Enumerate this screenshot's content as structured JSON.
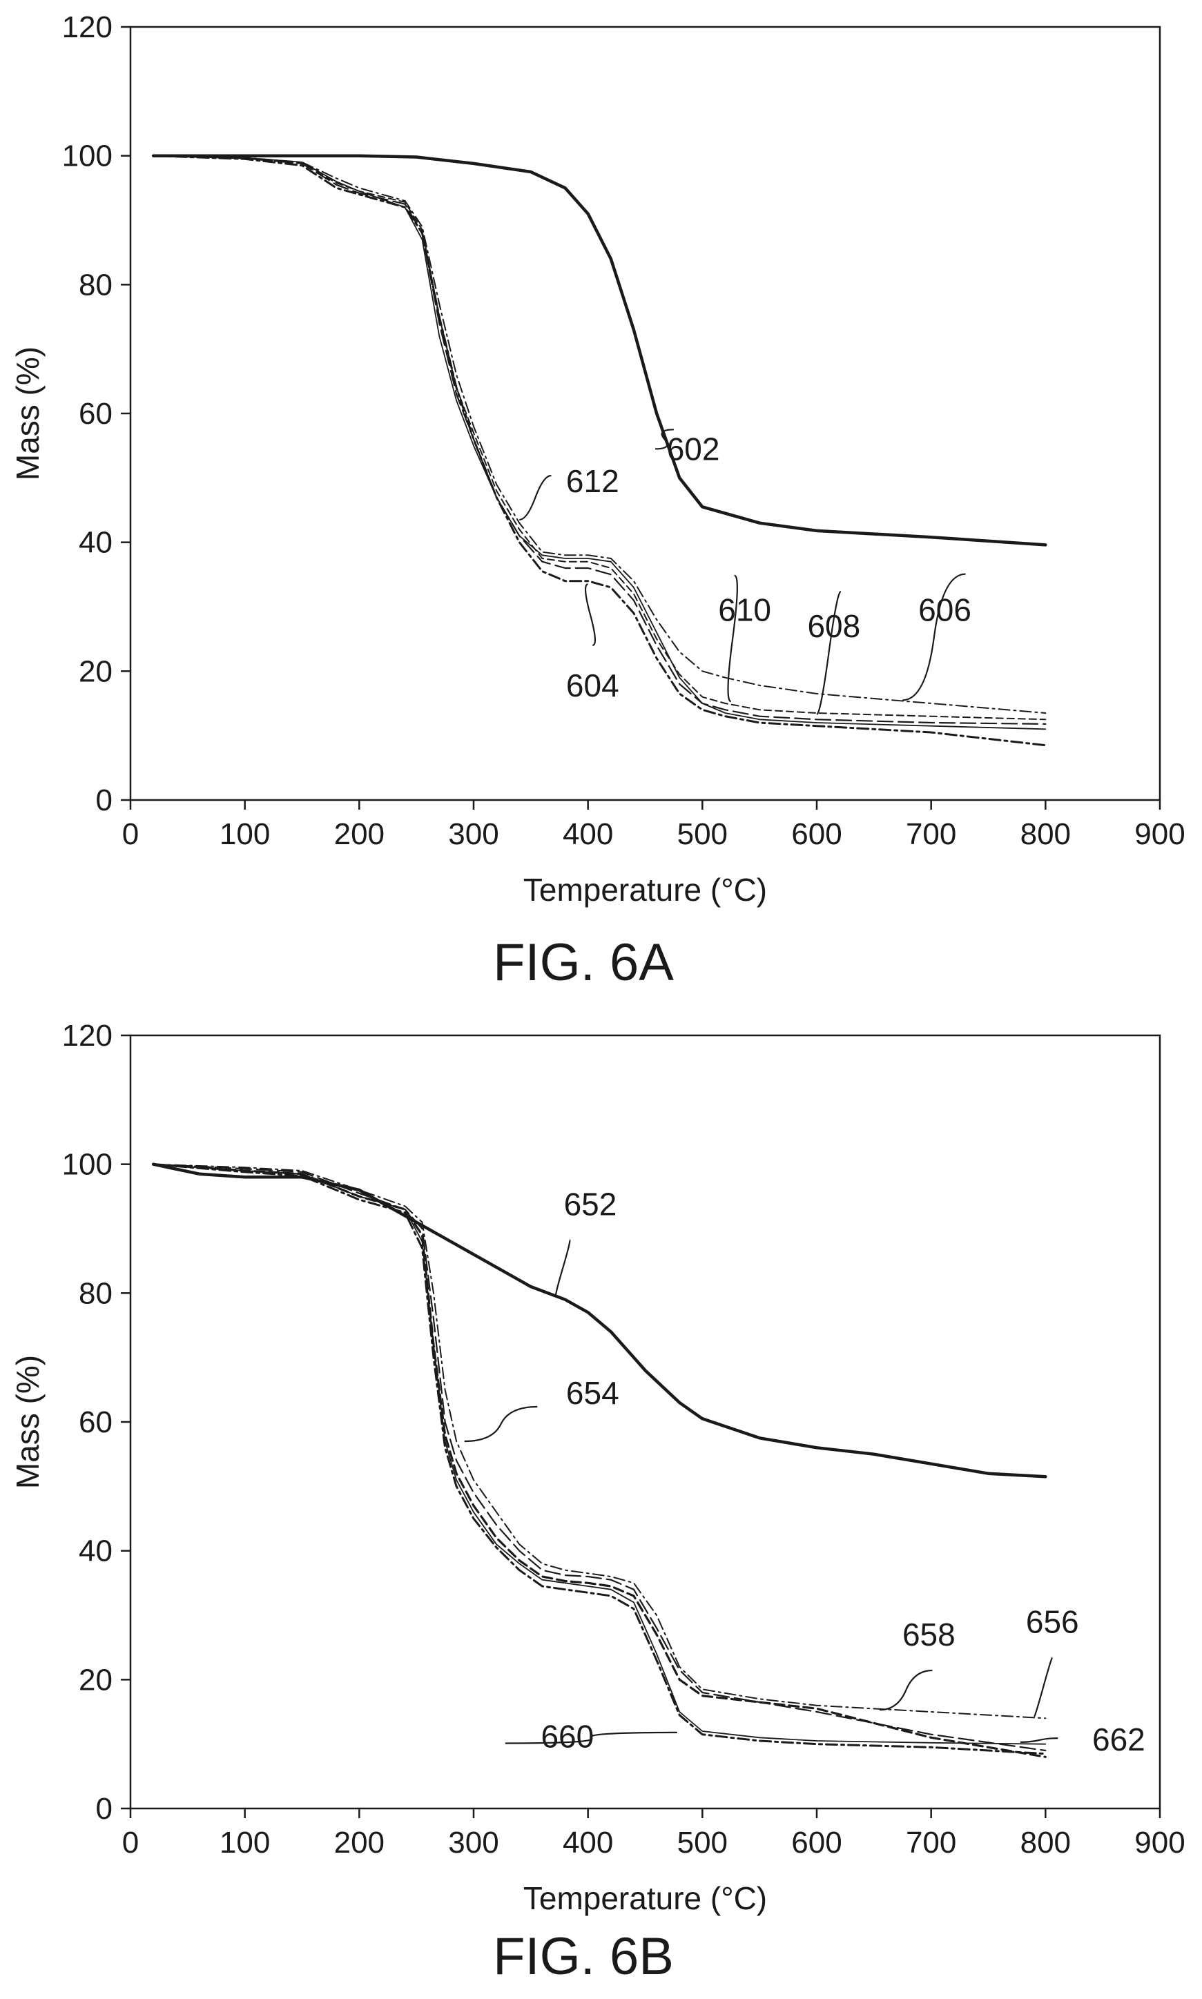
{
  "chart_data": [
    {
      "type": "line",
      "caption": "FIG. 6A",
      "xlabel": "Temperature (°C)",
      "ylabel": "Mass (%)",
      "xlim": [
        0,
        900
      ],
      "ylim": [
        0,
        120
      ],
      "xticks": [
        0,
        100,
        200,
        300,
        400,
        500,
        600,
        700,
        800,
        900
      ],
      "yticks": [
        0,
        20,
        40,
        60,
        80,
        100,
        120
      ],
      "grid": false,
      "series": [
        {
          "name": "602",
          "style": "thick-solid",
          "x": [
            20,
            100,
            200,
            250,
            300,
            350,
            380,
            400,
            420,
            440,
            460,
            480,
            500,
            550,
            600,
            700,
            800
          ],
          "y": [
            100,
            100,
            100,
            99.8,
            98.8,
            97.5,
            95,
            91,
            84,
            73,
            60,
            50,
            45.5,
            43,
            41.8,
            40.8,
            39.6
          ]
        },
        {
          "name": "612",
          "style": "thin-solid",
          "x": [
            20,
            100,
            150,
            180,
            200,
            240,
            255,
            270,
            285,
            300,
            320,
            340,
            360,
            380,
            400,
            420,
            440,
            460,
            480,
            500,
            520,
            550,
            600,
            700,
            800
          ],
          "y": [
            100,
            99.7,
            99,
            96,
            94.5,
            92,
            87,
            72,
            62,
            55,
            47,
            41,
            38,
            37.5,
            37.5,
            37,
            33,
            26,
            19,
            15,
            13.5,
            12.5,
            12,
            11.5,
            11
          ]
        },
        {
          "name": "604",
          "style": "dash-dot-bold",
          "x": [
            20,
            100,
            150,
            180,
            200,
            240,
            255,
            270,
            285,
            300,
            320,
            340,
            360,
            380,
            400,
            420,
            440,
            460,
            480,
            500,
            520,
            550,
            600,
            700,
            800
          ],
          "y": [
            100,
            99.5,
            98.5,
            95,
            94,
            92,
            88,
            75,
            64,
            56,
            47,
            40,
            35.5,
            34,
            34,
            33,
            29,
            22,
            16.5,
            14,
            13,
            12,
            11.5,
            10.5,
            8.5
          ]
        },
        {
          "name": "610",
          "style": "long-dash",
          "x": [
            20,
            100,
            150,
            180,
            200,
            240,
            255,
            270,
            285,
            300,
            320,
            340,
            360,
            380,
            400,
            420,
            440,
            460,
            480,
            500,
            520,
            550,
            600,
            700,
            800
          ],
          "y": [
            100,
            99.6,
            98.8,
            95.5,
            94.2,
            92.5,
            88,
            74,
            63,
            56,
            47,
            41,
            37,
            36,
            36,
            35,
            31,
            24,
            18,
            15,
            14,
            13,
            12.5,
            12,
            11.8
          ]
        },
        {
          "name": "608",
          "style": "dashed",
          "x": [
            20,
            100,
            150,
            180,
            200,
            240,
            255,
            270,
            285,
            300,
            320,
            340,
            360,
            380,
            400,
            420,
            440,
            460,
            480,
            500,
            520,
            550,
            600,
            700,
            800
          ],
          "y": [
            100,
            99.6,
            98.8,
            95.8,
            94.5,
            92.8,
            88.5,
            75,
            64,
            57,
            48,
            42,
            37.5,
            37,
            37,
            36,
            32,
            25,
            19.5,
            16,
            15,
            14,
            13.5,
            13,
            12.5
          ]
        },
        {
          "name": "606",
          "style": "dash-dot",
          "x": [
            20,
            100,
            150,
            180,
            200,
            240,
            255,
            270,
            285,
            300,
            320,
            340,
            360,
            380,
            400,
            420,
            440,
            460,
            480,
            500,
            520,
            550,
            600,
            700,
            800
          ],
          "y": [
            100,
            99.7,
            99,
            96.5,
            95,
            93,
            89,
            77,
            66,
            58,
            49,
            43,
            38.5,
            38,
            38,
            37.5,
            34,
            28,
            23,
            20,
            19,
            17.8,
            16.5,
            15,
            13.5
          ]
        }
      ],
      "annotations": [
        {
          "text": "602",
          "x": 492,
          "y": 54.5
        },
        {
          "text": "612",
          "x": 404,
          "y": 49.5
        },
        {
          "text": "604",
          "x": 404,
          "y": 17.8
        },
        {
          "text": "610",
          "x": 537,
          "y": 29.5
        },
        {
          "text": "608",
          "x": 615,
          "y": 27
        },
        {
          "text": "606",
          "x": 712,
          "y": 29.5
        }
      ]
    },
    {
      "type": "line",
      "caption": "FIG. 6B",
      "xlabel": "Temperature (°C)",
      "ylabel": "Mass (%)",
      "xlim": [
        0,
        900
      ],
      "ylim": [
        0,
        120
      ],
      "xticks": [
        0,
        100,
        200,
        300,
        400,
        500,
        600,
        700,
        800,
        900
      ],
      "yticks": [
        0,
        20,
        40,
        60,
        80,
        100,
        120
      ],
      "grid": false,
      "series": [
        {
          "name": "652",
          "style": "thick-solid",
          "x": [
            20,
            60,
            100,
            150,
            200,
            250,
            300,
            350,
            380,
            400,
            420,
            450,
            480,
            500,
            550,
            600,
            650,
            700,
            750,
            800
          ],
          "y": [
            100,
            98.5,
            98,
            98,
            96,
            91,
            86,
            81,
            79,
            77,
            74,
            68,
            63,
            60.5,
            57.5,
            56,
            55,
            53.5,
            52,
            51.5
          ]
        },
        {
          "name": "654",
          "style": "dash-dot",
          "x": [
            20,
            100,
            150,
            200,
            240,
            255,
            265,
            275,
            285,
            300,
            320,
            340,
            360,
            380,
            400,
            420,
            440,
            460,
            480,
            500,
            550,
            600,
            700,
            800
          ],
          "y": [
            100,
            99.5,
            99,
            96,
            93.5,
            91,
            80,
            65,
            57,
            51,
            46,
            41,
            38,
            37,
            36.5,
            36,
            35,
            30,
            22,
            18.5,
            17,
            16,
            15,
            14
          ]
        },
        {
          "name": "656",
          "style": "long-dash",
          "x": [
            20,
            100,
            150,
            200,
            240,
            255,
            265,
            275,
            285,
            300,
            320,
            340,
            360,
            380,
            400,
            420,
            440,
            460,
            480,
            500,
            550,
            600,
            700,
            800
          ],
          "y": [
            100,
            99.3,
            98.8,
            95.5,
            93,
            90,
            76,
            60,
            54,
            49,
            44,
            40,
            37,
            36.2,
            36,
            35.5,
            34,
            28,
            21.5,
            18,
            16.5,
            15,
            11.5,
            9
          ]
        },
        {
          "name": "658",
          "style": "dashed-bold",
          "x": [
            20,
            100,
            150,
            200,
            240,
            255,
            265,
            275,
            285,
            300,
            320,
            340,
            360,
            380,
            400,
            420,
            440,
            460,
            480,
            500,
            550,
            600,
            700,
            800
          ],
          "y": [
            100,
            99,
            98.5,
            95,
            93,
            89,
            72,
            58,
            52,
            47,
            42,
            38.5,
            36,
            35.3,
            35,
            34.5,
            33,
            27,
            20,
            17.5,
            16.5,
            15.5,
            11,
            8
          ]
        },
        {
          "name": "660",
          "style": "thin-solid",
          "x": [
            20,
            100,
            150,
            200,
            240,
            255,
            265,
            275,
            285,
            300,
            320,
            340,
            360,
            380,
            400,
            420,
            440,
            460,
            480,
            500,
            550,
            600,
            700,
            800
          ],
          "y": [
            100,
            99,
            98.5,
            95,
            93,
            88,
            72,
            57,
            51,
            46,
            41,
            38,
            35.5,
            35,
            34.5,
            34,
            32,
            24,
            15,
            12,
            11,
            10.5,
            10.2,
            10
          ]
        },
        {
          "name": "662",
          "style": "dash-dot-bold",
          "x": [
            20,
            100,
            150,
            200,
            240,
            255,
            265,
            275,
            285,
            300,
            320,
            340,
            360,
            380,
            400,
            420,
            440,
            460,
            480,
            500,
            550,
            600,
            700,
            800
          ],
          "y": [
            100,
            98.8,
            98.2,
            94.5,
            92.5,
            87,
            70,
            56,
            50,
            45,
            40.5,
            37,
            34.5,
            34,
            33.5,
            33,
            31,
            23,
            14.5,
            11.5,
            10.5,
            10,
            9.5,
            8.5
          ]
        }
      ],
      "annotations": [
        {
          "text": "652",
          "x": 402,
          "y": 93.8
        },
        {
          "text": "654",
          "x": 404,
          "y": 64.5
        },
        {
          "text": "656",
          "x": 806,
          "y": 29
        },
        {
          "text": "658",
          "x": 698,
          "y": 27
        },
        {
          "text": "660",
          "x": 382,
          "y": 11.2
        },
        {
          "text": "662",
          "x": 864,
          "y": 10.7
        }
      ]
    }
  ]
}
